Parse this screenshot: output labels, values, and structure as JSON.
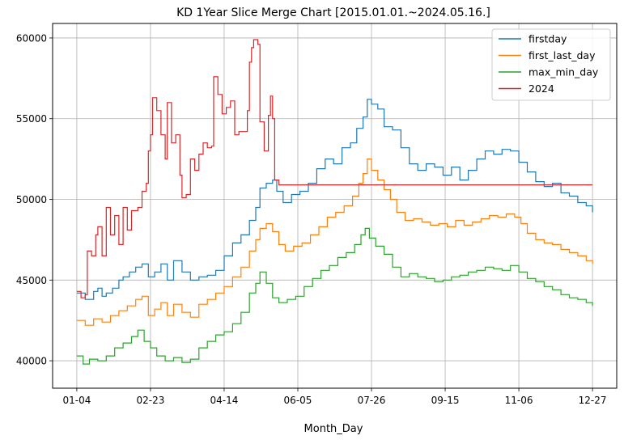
{
  "chart_data": {
    "type": "line",
    "title": "KD 1Year Slice Merge Chart [2015.01.01.~2024.05.16.]",
    "xlabel": "Month_Day",
    "ylabel": "",
    "x_tick_labels": [
      "01-04",
      "02-23",
      "04-14",
      "06-05",
      "07-26",
      "09-15",
      "11-06",
      "12-27"
    ],
    "x_tick_index": [
      0,
      35,
      70,
      105,
      140,
      175,
      210,
      245
    ],
    "x_range": [
      -11.5,
      256.5
    ],
    "ylim": [
      38300,
      60900
    ],
    "y_ticks": [
      40000,
      45000,
      50000,
      55000,
      60000
    ],
    "grid": true,
    "legend_position": "top-right",
    "series": [
      {
        "name": "firstday",
        "color": "#1f77b4",
        "points": [
          [
            0,
            44200
          ],
          [
            4,
            43800
          ],
          [
            8,
            44300
          ],
          [
            10,
            44500
          ],
          [
            12,
            44000
          ],
          [
            14,
            44200
          ],
          [
            17,
            44500
          ],
          [
            20,
            45000
          ],
          [
            22,
            45200
          ],
          [
            25,
            45500
          ],
          [
            28,
            45800
          ],
          [
            31,
            46000
          ],
          [
            34,
            45200
          ],
          [
            37,
            45500
          ],
          [
            40,
            46000
          ],
          [
            43,
            45000
          ],
          [
            46,
            46200
          ],
          [
            50,
            45500
          ],
          [
            54,
            45000
          ],
          [
            58,
            45200
          ],
          [
            62,
            45300
          ],
          [
            66,
            45600
          ],
          [
            70,
            46500
          ],
          [
            74,
            47300
          ],
          [
            78,
            47800
          ],
          [
            82,
            48700
          ],
          [
            85,
            49500
          ],
          [
            87,
            50700
          ],
          [
            90,
            51000
          ],
          [
            93,
            51200
          ],
          [
            95,
            50500
          ],
          [
            98,
            49800
          ],
          [
            102,
            50300
          ],
          [
            106,
            50500
          ],
          [
            110,
            51000
          ],
          [
            114,
            51900
          ],
          [
            118,
            52500
          ],
          [
            122,
            52200
          ],
          [
            126,
            53200
          ],
          [
            130,
            53500
          ],
          [
            133,
            54400
          ],
          [
            136,
            55100
          ],
          [
            138,
            56200
          ],
          [
            140,
            55900
          ],
          [
            143,
            55600
          ],
          [
            146,
            54500
          ],
          [
            150,
            54300
          ],
          [
            154,
            53200
          ],
          [
            158,
            52200
          ],
          [
            162,
            51800
          ],
          [
            166,
            52200
          ],
          [
            170,
            52000
          ],
          [
            174,
            51500
          ],
          [
            178,
            52000
          ],
          [
            182,
            51200
          ],
          [
            186,
            51800
          ],
          [
            190,
            52500
          ],
          [
            194,
            53000
          ],
          [
            198,
            52800
          ],
          [
            202,
            53100
          ],
          [
            206,
            53000
          ],
          [
            210,
            52300
          ],
          [
            214,
            51700
          ],
          [
            218,
            51100
          ],
          [
            222,
            50800
          ],
          [
            226,
            51000
          ],
          [
            230,
            50400
          ],
          [
            234,
            50200
          ],
          [
            238,
            49800
          ],
          [
            242,
            49600
          ],
          [
            245,
            49200
          ]
        ]
      },
      {
        "name": "first_last_day",
        "color": "#ff7f0e",
        "points": [
          [
            0,
            42500
          ],
          [
            4,
            42200
          ],
          [
            8,
            42600
          ],
          [
            12,
            42400
          ],
          [
            16,
            42800
          ],
          [
            20,
            43100
          ],
          [
            24,
            43400
          ],
          [
            28,
            43800
          ],
          [
            31,
            44000
          ],
          [
            34,
            42800
          ],
          [
            37,
            43200
          ],
          [
            40,
            43600
          ],
          [
            43,
            42800
          ],
          [
            46,
            43500
          ],
          [
            50,
            43000
          ],
          [
            54,
            42700
          ],
          [
            58,
            43500
          ],
          [
            62,
            43800
          ],
          [
            66,
            44200
          ],
          [
            70,
            44600
          ],
          [
            74,
            45200
          ],
          [
            78,
            45800
          ],
          [
            82,
            46800
          ],
          [
            85,
            47500
          ],
          [
            87,
            48200
          ],
          [
            90,
            48500
          ],
          [
            93,
            48000
          ],
          [
            96,
            47200
          ],
          [
            99,
            46800
          ],
          [
            103,
            47100
          ],
          [
            107,
            47300
          ],
          [
            111,
            47800
          ],
          [
            115,
            48300
          ],
          [
            119,
            48900
          ],
          [
            123,
            49200
          ],
          [
            127,
            49600
          ],
          [
            131,
            50200
          ],
          [
            134,
            51000
          ],
          [
            136,
            51600
          ],
          [
            138,
            52500
          ],
          [
            140,
            51800
          ],
          [
            143,
            51200
          ],
          [
            146,
            50600
          ],
          [
            149,
            50000
          ],
          [
            152,
            49200
          ],
          [
            156,
            48700
          ],
          [
            160,
            48800
          ],
          [
            164,
            48600
          ],
          [
            168,
            48400
          ],
          [
            172,
            48500
          ],
          [
            176,
            48300
          ],
          [
            180,
            48700
          ],
          [
            184,
            48400
          ],
          [
            188,
            48600
          ],
          [
            192,
            48800
          ],
          [
            196,
            49000
          ],
          [
            200,
            48900
          ],
          [
            204,
            49100
          ],
          [
            208,
            48900
          ],
          [
            211,
            48500
          ],
          [
            214,
            47900
          ],
          [
            218,
            47500
          ],
          [
            222,
            47300
          ],
          [
            226,
            47200
          ],
          [
            230,
            46900
          ],
          [
            234,
            46700
          ],
          [
            238,
            46500
          ],
          [
            242,
            46200
          ],
          [
            245,
            46000
          ]
        ]
      },
      {
        "name": "max_min_day",
        "color": "#2ca02c",
        "points": [
          [
            0,
            40300
          ],
          [
            3,
            39800
          ],
          [
            6,
            40100
          ],
          [
            10,
            40000
          ],
          [
            14,
            40300
          ],
          [
            18,
            40800
          ],
          [
            22,
            41100
          ],
          [
            26,
            41500
          ],
          [
            29,
            41900
          ],
          [
            32,
            41200
          ],
          [
            35,
            40800
          ],
          [
            38,
            40300
          ],
          [
            42,
            40000
          ],
          [
            46,
            40200
          ],
          [
            50,
            39900
          ],
          [
            54,
            40100
          ],
          [
            58,
            40800
          ],
          [
            62,
            41200
          ],
          [
            66,
            41600
          ],
          [
            70,
            41800
          ],
          [
            74,
            42300
          ],
          [
            78,
            43000
          ],
          [
            82,
            44200
          ],
          [
            85,
            44800
          ],
          [
            87,
            45500
          ],
          [
            90,
            44800
          ],
          [
            93,
            43900
          ],
          [
            96,
            43600
          ],
          [
            100,
            43800
          ],
          [
            104,
            44000
          ],
          [
            108,
            44600
          ],
          [
            112,
            45100
          ],
          [
            116,
            45600
          ],
          [
            120,
            45900
          ],
          [
            124,
            46400
          ],
          [
            128,
            46700
          ],
          [
            132,
            47200
          ],
          [
            135,
            47800
          ],
          [
            137,
            48200
          ],
          [
            139,
            47600
          ],
          [
            142,
            47100
          ],
          [
            146,
            46600
          ],
          [
            150,
            45800
          ],
          [
            154,
            45200
          ],
          [
            158,
            45400
          ],
          [
            162,
            45200
          ],
          [
            166,
            45100
          ],
          [
            170,
            44900
          ],
          [
            174,
            45000
          ],
          [
            178,
            45200
          ],
          [
            182,
            45300
          ],
          [
            186,
            45500
          ],
          [
            190,
            45600
          ],
          [
            194,
            45800
          ],
          [
            198,
            45700
          ],
          [
            202,
            45600
          ],
          [
            206,
            45900
          ],
          [
            210,
            45500
          ],
          [
            214,
            45100
          ],
          [
            218,
            44900
          ],
          [
            222,
            44600
          ],
          [
            226,
            44400
          ],
          [
            230,
            44100
          ],
          [
            234,
            43900
          ],
          [
            238,
            43800
          ],
          [
            242,
            43600
          ],
          [
            245,
            43400
          ]
        ]
      },
      {
        "name": "2024",
        "color": "#d62728",
        "points": [
          [
            0,
            44300
          ],
          [
            2,
            43900
          ],
          [
            4,
            44100
          ],
          [
            5,
            46800
          ],
          [
            7,
            46500
          ],
          [
            9,
            47800
          ],
          [
            10,
            48300
          ],
          [
            12,
            46500
          ],
          [
            14,
            49500
          ],
          [
            16,
            47800
          ],
          [
            18,
            49000
          ],
          [
            20,
            47200
          ],
          [
            22,
            49500
          ],
          [
            24,
            48100
          ],
          [
            26,
            49300
          ],
          [
            29,
            49500
          ],
          [
            31,
            50500
          ],
          [
            33,
            51000
          ],
          [
            34,
            53000
          ],
          [
            35,
            54000
          ],
          [
            36,
            56300
          ],
          [
            38,
            55500
          ],
          [
            40,
            54000
          ],
          [
            42,
            52500
          ],
          [
            43,
            56000
          ],
          [
            45,
            53500
          ],
          [
            47,
            54000
          ],
          [
            49,
            51500
          ],
          [
            50,
            50100
          ],
          [
            52,
            50300
          ],
          [
            54,
            52500
          ],
          [
            56,
            51800
          ],
          [
            58,
            52800
          ],
          [
            60,
            53500
          ],
          [
            62,
            53200
          ],
          [
            64,
            53300
          ],
          [
            65,
            57600
          ],
          [
            67,
            56500
          ],
          [
            69,
            55300
          ],
          [
            71,
            55700
          ],
          [
            73,
            56100
          ],
          [
            75,
            54000
          ],
          [
            77,
            54200
          ],
          [
            80,
            54200
          ],
          [
            81,
            55500
          ],
          [
            82,
            58500
          ],
          [
            83,
            59400
          ],
          [
            84,
            59900
          ],
          [
            86,
            59600
          ],
          [
            87,
            54800
          ],
          [
            89,
            53000
          ],
          [
            91,
            55200
          ],
          [
            92,
            56400
          ],
          [
            93,
            55000
          ],
          [
            94,
            51200
          ],
          [
            96,
            50900
          ],
          [
            245,
            50900
          ]
        ]
      }
    ]
  }
}
